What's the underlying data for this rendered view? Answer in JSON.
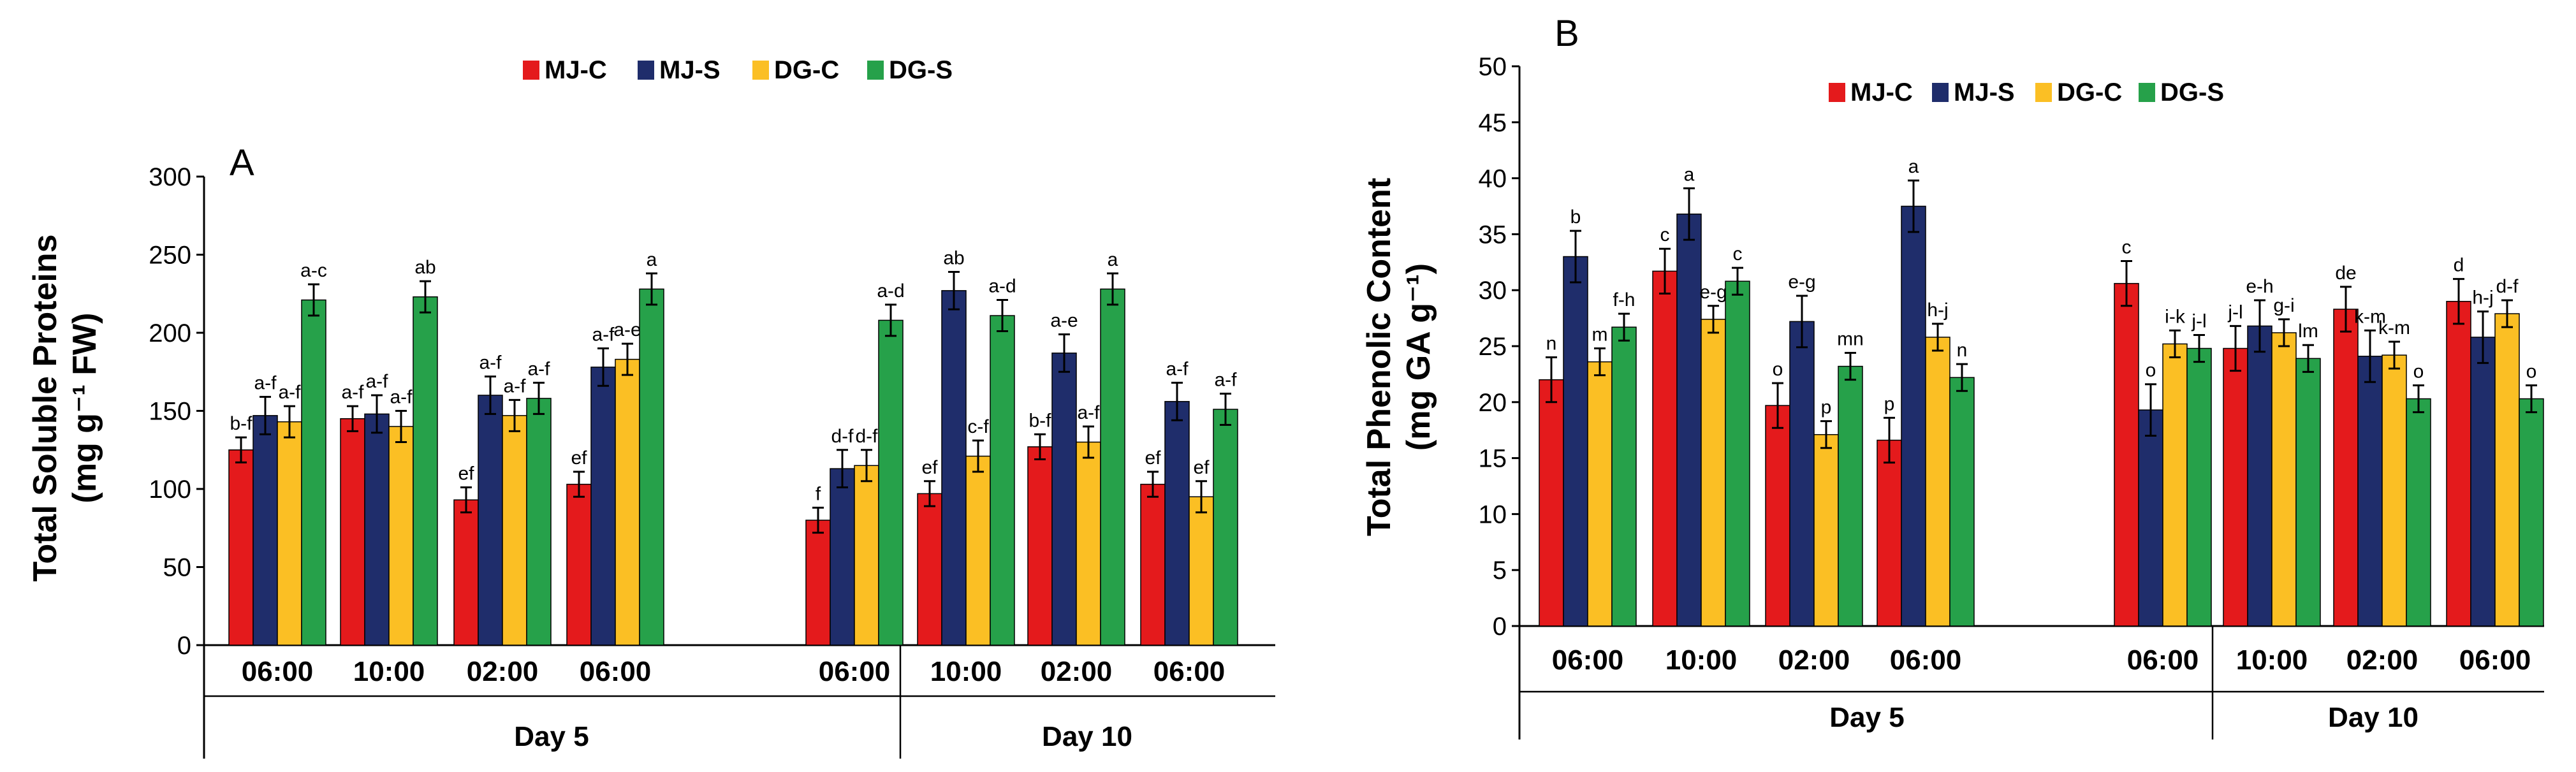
{
  "legend": [
    {
      "name": "MJ-C",
      "color": "#e41a1c"
    },
    {
      "name": "MJ-S",
      "color": "#1f2d6b"
    },
    {
      "name": "DG-C",
      "color": "#fbbf24"
    },
    {
      "name": "DG-S",
      "color": "#26a14a"
    }
  ],
  "chart_data": [
    {
      "type": "bar",
      "panel": "A",
      "ylabel_main": "Total Soluble Proteins",
      "ylabel_unit": "(mg g⁻¹ FW)",
      "ylim": [
        0,
        300
      ],
      "yticks": [
        "0",
        "50",
        "100",
        "150",
        "200",
        "250",
        "300"
      ],
      "categories": [
        "06:00",
        "10:00",
        "02:00",
        "06:00",
        "06:00",
        "10:00",
        "02:00",
        "06:00"
      ],
      "groups": [
        {
          "label": "Day 5",
          "range": [
            0,
            4
          ]
        },
        {
          "label": "Day 10",
          "range": [
            5,
            7
          ]
        }
      ],
      "series": [
        {
          "name": "MJ-C",
          "values": [
            125,
            145,
            93,
            103,
            80,
            97,
            127,
            103
          ],
          "errors": [
            8,
            8,
            8,
            8,
            8,
            8,
            8,
            8
          ],
          "labels": [
            "b-f",
            "a-f",
            "ef",
            "ef",
            "f",
            "ef",
            "b-f",
            "ef"
          ]
        },
        {
          "name": "MJ-S",
          "values": [
            147,
            148,
            160,
            178,
            113,
            227,
            187,
            156
          ],
          "errors": [
            12,
            12,
            12,
            12,
            12,
            12,
            12,
            12
          ],
          "labels": [
            "a-f",
            "a-f",
            "a-f",
            "a-f",
            "d-f",
            "ab",
            "a-e",
            "a-f"
          ]
        },
        {
          "name": "DG-C",
          "values": [
            143,
            140,
            147,
            183,
            115,
            121,
            130,
            95
          ],
          "errors": [
            10,
            10,
            10,
            10,
            10,
            10,
            10,
            10
          ],
          "labels": [
            "a-f",
            "a-f",
            "a-f",
            "a-e",
            "d-f",
            "c-f",
            "a-f",
            "ef"
          ]
        },
        {
          "name": "DG-S",
          "values": [
            221,
            223,
            158,
            228,
            208,
            211,
            228,
            151
          ],
          "errors": [
            10,
            10,
            10,
            10,
            10,
            10,
            10,
            10
          ],
          "labels": [
            "a-c",
            "ab",
            "a-f",
            "a",
            "a-d",
            "a-d",
            "a",
            "a-f"
          ]
        }
      ]
    },
    {
      "type": "bar",
      "panel": "B",
      "ylabel_main": "Total Phenolic Content",
      "ylabel_unit": "(mg GA g⁻¹)",
      "ylim": [
        0,
        50
      ],
      "yticks": [
        "0",
        "5",
        "10",
        "15",
        "20",
        "25",
        "30",
        "35",
        "40",
        "45",
        "50"
      ],
      "categories": [
        "06:00",
        "10:00",
        "02:00",
        "06:00",
        "06:00",
        "10:00",
        "02:00",
        "06:00"
      ],
      "groups": [
        {
          "label": "Day 5",
          "range": [
            0,
            4
          ]
        },
        {
          "label": "Day 10",
          "range": [
            5,
            7
          ]
        }
      ],
      "series": [
        {
          "name": "MJ-C",
          "values": [
            22,
            31.7,
            19.7,
            16.6,
            30.6,
            24.8,
            28.3,
            29
          ],
          "errors": [
            2,
            2,
            2,
            2,
            2,
            2,
            2,
            2
          ],
          "labels": [
            "n",
            "c",
            "o",
            "p",
            "c",
            "j-l",
            "de",
            "d"
          ]
        },
        {
          "name": "MJ-S",
          "values": [
            33,
            36.8,
            27.2,
            37.5,
            19.3,
            26.8,
            24.1,
            25.8
          ],
          "errors": [
            2.3,
            2.3,
            2.3,
            2.3,
            2.3,
            2.3,
            2.3,
            2.3
          ],
          "labels": [
            "b",
            "a",
            "e-g",
            "a",
            "o",
            "e-h",
            "k-m",
            "h-j"
          ]
        },
        {
          "name": "DG-C",
          "values": [
            23.6,
            27.4,
            17.1,
            25.8,
            25.2,
            26.2,
            24.2,
            27.9
          ],
          "errors": [
            1.2,
            1.2,
            1.2,
            1.2,
            1.2,
            1.2,
            1.2,
            1.2
          ],
          "labels": [
            "m",
            "e-g",
            "p",
            "h-j",
            "i-k",
            "g-i",
            "k-m",
            "d-f"
          ]
        },
        {
          "name": "DG-S",
          "values": [
            26.7,
            30.8,
            23.2,
            22.2,
            24.8,
            23.9,
            20.3,
            20.3
          ],
          "errors": [
            1.2,
            1.2,
            1.2,
            1.2,
            1.2,
            1.2,
            1.2,
            1.2
          ],
          "labels": [
            "f-h",
            "c",
            "mn",
            "n",
            "j-l",
            "lm",
            "o",
            "o"
          ]
        }
      ]
    }
  ]
}
